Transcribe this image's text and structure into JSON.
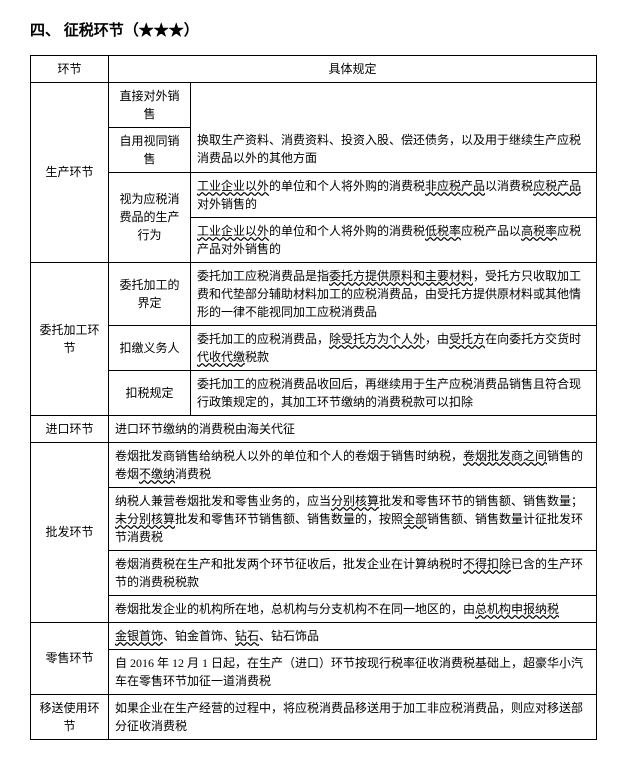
{
  "title": "四、 征税环节（★★★）",
  "header": {
    "col1": "环节",
    "col2": "具体规定"
  },
  "prod": {
    "name": "生产环节",
    "direct": "直接对外销售",
    "selfuse_label": "自用视同销售",
    "selfuse_text": "换取生产资料、消费资料、投资入股、偿还债务，以及用于继续生产应税消费品以外的其他方面",
    "deemed_label": "视为应税消费品的生产行为",
    "deemed1_a": "工业企业以外",
    "deemed1_b": "的单位和个人将外购的消费税",
    "deemed1_c": "非应税产品",
    "deemed1_d": "以消费税",
    "deemed1_e": "应税产品",
    "deemed1_f": "对外销售的",
    "deemed2_a": "工业企业以外",
    "deemed2_b": "的单位和个人将外购的消费税",
    "deemed2_c": "低税率",
    "deemed2_d": "应税产品以",
    "deemed2_e": "高税率",
    "deemed2_f": "应税产品对外销售的"
  },
  "proc": {
    "name": "委托加工环节",
    "def_label": "委托加工的界定",
    "def_a": "委托加工应税消费品是指",
    "def_b": "委托方提供原料和主要材料",
    "def_c": "，受托方只收取加工费和代垫部分辅助材料加工的应税消费品，由受托方提供原材料或其他情形的一律不能视同加工应税消费品",
    "with_label": "扣缴义务人",
    "with_a": "委托加工的应税消费品，",
    "with_b": "除受托方为个人外",
    "with_c": "，由",
    "with_d": "受托方",
    "with_e": "在向委托方交货时",
    "with_f": "代收代缴",
    "with_g": "税款",
    "ded_label": "扣税规定",
    "ded_text": "委托加工的应税消费品收回后，再继续用于生产应税消费品销售且符合现行政策规定的，其加工环节缴纳的消费税款可以扣除"
  },
  "imp": {
    "name": "进口环节",
    "text": "进口环节缴纳的消费税由海关代征"
  },
  "whl": {
    "name": "批发环节",
    "r1_a": "卷烟批发商销售给纳税人以外的单位和个人的卷烟于销售时纳税，",
    "r1_b": "卷烟批发商之间",
    "r1_c": "销售的卷烟",
    "r1_d": "不缴纳",
    "r1_e": "消费税",
    "r2_a": "纳税人兼营卷烟批发和零售业务的，应当",
    "r2_b": "分别核算",
    "r2_c": "批发和零售环节的销售额、销售数量；",
    "r2_d": "未分别核算",
    "r2_e": "批发和零售环节销售额、销售数量的，按照",
    "r2_f": "全部",
    "r2_g": "销售额、销售数量计征批发环节消费税",
    "r3_a": "卷烟消费税在生产和批发两个环节征收后，批发企业在计算纳税时",
    "r3_b": "不得扣除",
    "r3_c": "已含的生产环节的消费税税款",
    "r4_a": "卷烟批发企业的机构所在地，总机构与分支机构不在同一地区的，由",
    "r4_b": "总机构申报纳税"
  },
  "ret": {
    "name": "零售环节",
    "r1_a": "金银首饰",
    "r1_b": "、铂金首饰、",
    "r1_c": "钻石",
    "r1_d": "、钻石饰品",
    "r2": "自 2016 年 12 月 1 日起，在生产（进口）环节按现行税率征收消费税基础上，超豪华小汽车在零售环节加征一道消费税"
  },
  "mv": {
    "name": "移送使用环节",
    "text": "如果企业在生产经营的过程中，将应税消费品移送用于加工非应税消费品，则应对移送部分征收消费税"
  }
}
